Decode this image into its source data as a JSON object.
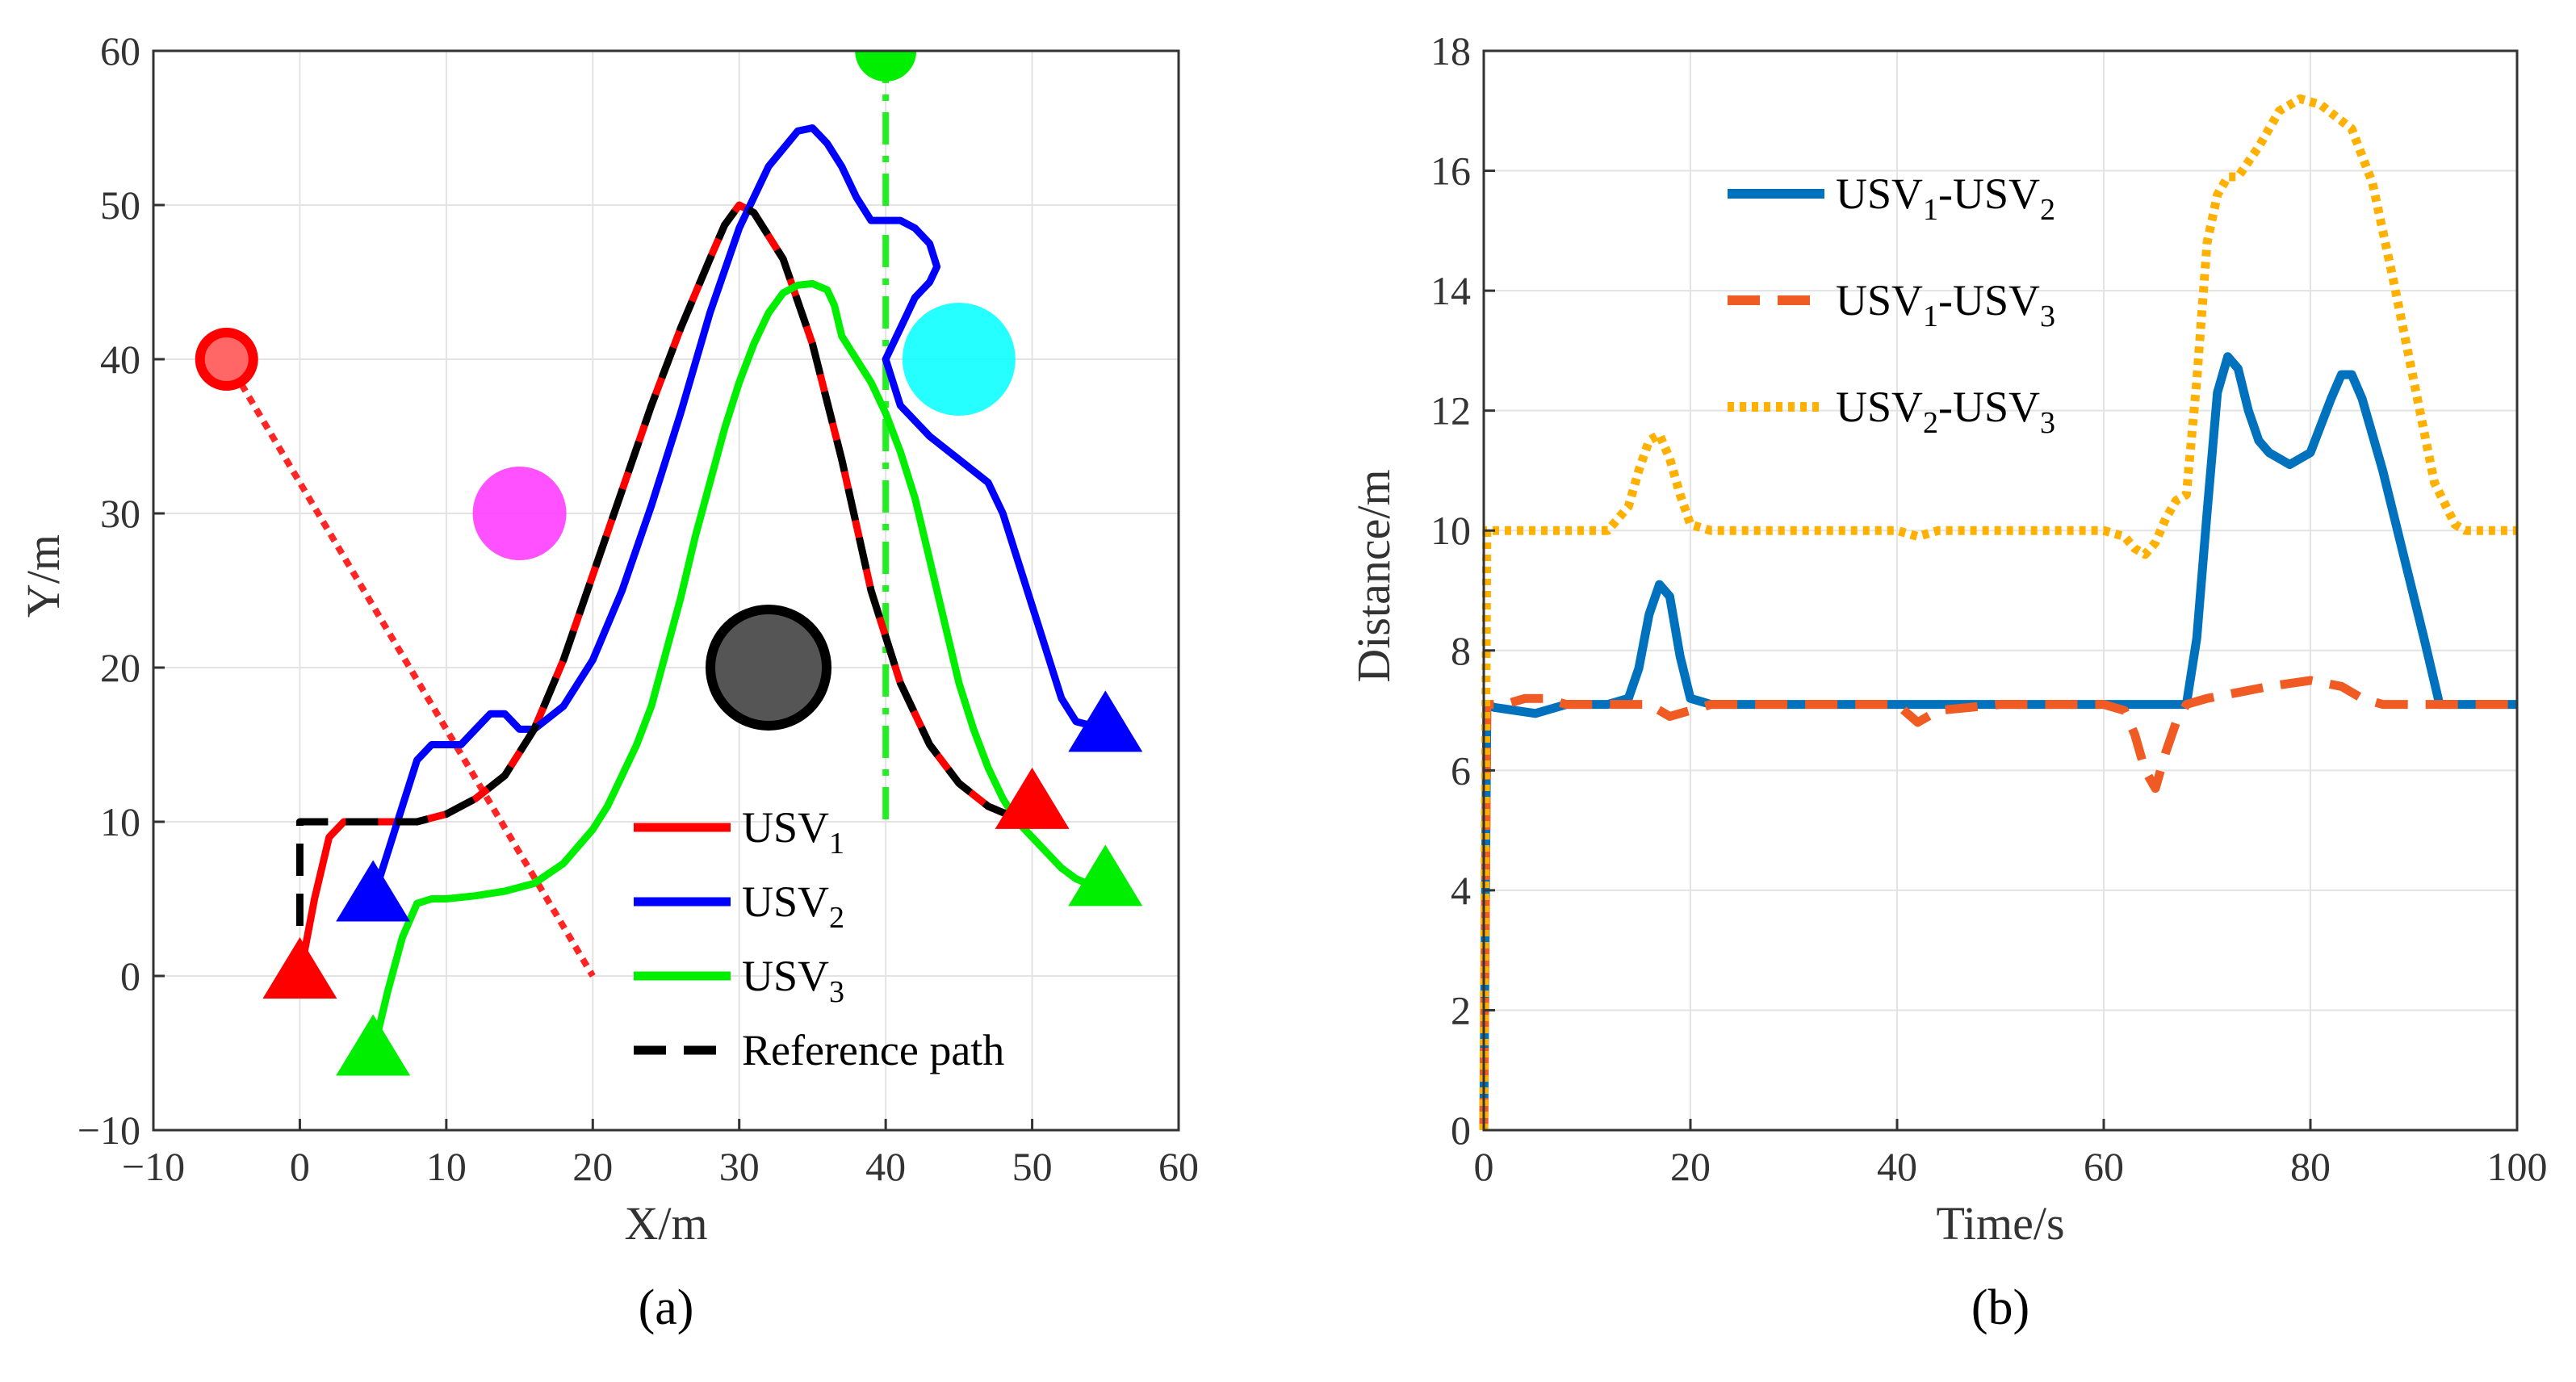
{
  "chart_data": [
    {
      "type": "line",
      "panel_label": "(a)",
      "xlabel": "X/m",
      "ylabel": "Y/m",
      "xlim": [
        -10,
        60
      ],
      "ylim": [
        -10,
        60
      ],
      "xticks": [
        "−10",
        "0",
        "10",
        "20",
        "30",
        "40",
        "50",
        "60"
      ],
      "yticks": [
        "−10",
        "0",
        "10",
        "20",
        "30",
        "40",
        "50",
        "60"
      ],
      "grid": true,
      "legend_position": "bottom-right",
      "series": [
        {
          "name": "USV1",
          "legend_main": "USV",
          "legend_sub": "1",
          "color": "#ff0000",
          "style": "solid",
          "x": [
            0,
            1,
            2,
            3,
            5,
            8,
            10,
            12,
            14,
            16,
            18,
            20,
            22,
            24,
            26,
            28,
            29,
            30,
            31,
            33,
            35,
            37,
            39,
            41,
            43,
            45,
            47,
            48.5,
            50
          ],
          "y": [
            0,
            5,
            9,
            10,
            10,
            10,
            10.5,
            11.5,
            13,
            16,
            20.5,
            26,
            31.5,
            37,
            42,
            46.5,
            48.7,
            50,
            49.5,
            46.5,
            41,
            33.5,
            25,
            19,
            15,
            12.5,
            11,
            10.4,
            10
          ]
        },
        {
          "name": "USV2",
          "legend_main": "USV",
          "legend_sub": "2",
          "color": "#0000ff",
          "style": "solid",
          "x": [
            5,
            6,
            7,
            8,
            9,
            10,
            11,
            12,
            13,
            14,
            15,
            16,
            18,
            20,
            22,
            24,
            26,
            28,
            30,
            32,
            34,
            35,
            36,
            37,
            38,
            39,
            40,
            41,
            42,
            43,
            43.5,
            43,
            42,
            41,
            40,
            41,
            43,
            45,
            47,
            48,
            50,
            52,
            53,
            55
          ],
          "y": [
            5,
            8,
            11,
            14,
            15,
            15,
            15,
            16,
            17,
            17,
            16,
            16,
            17.5,
            20.5,
            25,
            30.5,
            36.5,
            43,
            48.5,
            52.5,
            54.8,
            55,
            54,
            52.5,
            50.5,
            49,
            49,
            49,
            48.5,
            47.5,
            46,
            45,
            44,
            42,
            40,
            37,
            35,
            33.5,
            32,
            30,
            24,
            18,
            16.5,
            16
          ]
        },
        {
          "name": "USV3",
          "legend_main": "USV",
          "legend_sub": "3",
          "color": "#00ee00",
          "style": "solid",
          "x": [
            5,
            6,
            7,
            8,
            9,
            10,
            12,
            14,
            16,
            18,
            20,
            21,
            22,
            23,
            24,
            25,
            26,
            27,
            28,
            29,
            30,
            31,
            32,
            33,
            34,
            35,
            36,
            36.5,
            37,
            38,
            39,
            40,
            41,
            42,
            43,
            44,
            45,
            46,
            47,
            48,
            49,
            50,
            51,
            52,
            53,
            54,
            55
          ],
          "y": [
            -5,
            -1,
            2.5,
            4.7,
            5,
            5,
            5.2,
            5.5,
            6,
            7.3,
            9.5,
            11,
            13,
            15,
            17.5,
            21,
            24.5,
            28.5,
            32,
            35.5,
            38.5,
            41,
            43,
            44.3,
            44.8,
            44.9,
            44.5,
            43.5,
            41.5,
            40,
            38.5,
            36.5,
            34,
            31,
            27,
            23,
            19,
            16,
            13.5,
            11.5,
            10,
            9,
            8,
            7,
            6.3,
            5.9,
            5.7
          ]
        },
        {
          "name": "Reference path",
          "legend_main": "Reference path",
          "legend_sub": "",
          "color": "#000000",
          "style": "dashed",
          "x": [
            0,
            0,
            0,
            3,
            5,
            8,
            10,
            12,
            14,
            16,
            18,
            20,
            22,
            24,
            26,
            28,
            29,
            30,
            31,
            33,
            35,
            37,
            39,
            41,
            43,
            45,
            47,
            48.5,
            50
          ],
          "y": [
            0,
            7,
            10,
            10,
            10,
            10,
            10.5,
            11.5,
            13,
            16,
            20.5,
            26,
            31.5,
            37,
            42,
            46.5,
            48.7,
            50,
            49.5,
            46.5,
            41,
            33.5,
            25,
            19,
            15,
            12.5,
            11,
            10.4,
            10
          ]
        }
      ],
      "extras": {
        "obstacles": [
          {
            "x": 15,
            "y": 30,
            "color": "#ff33ff",
            "style": "static"
          },
          {
            "x": 45,
            "y": 40,
            "color": "#00ffff",
            "style": "static"
          },
          {
            "x": 32,
            "y": 20,
            "color": "#555555",
            "style": "dark"
          }
        ],
        "moving_obstacles": [
          {
            "from": [
              -5,
              40
            ],
            "to": [
              20,
              0
            ],
            "color": "#ff0000"
          },
          {
            "from": [
              40,
              60
            ],
            "to": [
              40,
              10
            ],
            "color": "#00ee00"
          }
        ],
        "markers": [
          {
            "x": 0,
            "y": 0,
            "color": "#ff0000"
          },
          {
            "x": 5,
            "y": 5,
            "color": "#0000ff"
          },
          {
            "x": 5,
            "y": -5,
            "color": "#00ee00"
          },
          {
            "x": 50,
            "y": 11,
            "color": "#ff0000"
          },
          {
            "x": 55,
            "y": 16,
            "color": "#0000ff"
          },
          {
            "x": 55,
            "y": 6,
            "color": "#00ee00"
          }
        ]
      }
    },
    {
      "type": "line",
      "panel_label": "(b)",
      "xlabel": "Time/s",
      "ylabel": "Distance/m",
      "xlim": [
        0,
        100
      ],
      "ylim": [
        0,
        18
      ],
      "xticks": [
        "0",
        "20",
        "40",
        "60",
        "80",
        "100"
      ],
      "yticks": [
        "0",
        "2",
        "4",
        "6",
        "8",
        "10",
        "12",
        "14",
        "16",
        "18"
      ],
      "grid": true,
      "legend_position": "top-left",
      "series": [
        {
          "name": "USV1-USV2",
          "legend_main": "USV",
          "legend_sub": "1",
          "legend_main2": "-USV",
          "legend_sub2": "2",
          "color": "#0072bd",
          "style": "solid",
          "x": [
            0,
            0.3,
            1,
            3,
            5,
            8,
            10,
            12,
            14,
            15,
            16,
            17,
            18,
            19,
            20,
            22,
            30,
            40,
            50,
            60,
            66,
            68,
            69,
            70,
            71,
            72,
            73,
            74,
            75,
            76,
            78,
            80,
            82,
            83,
            84,
            85,
            87,
            89,
            91,
            92.5,
            95,
            100
          ],
          "y": [
            0,
            7.1,
            7.05,
            7.0,
            6.95,
            7.1,
            7.1,
            7.1,
            7.2,
            7.7,
            8.6,
            9.1,
            8.9,
            7.9,
            7.2,
            7.1,
            7.1,
            7.1,
            7.1,
            7.1,
            7.1,
            7.1,
            8.2,
            10.3,
            12.3,
            12.9,
            12.7,
            12.0,
            11.5,
            11.3,
            11.1,
            11.3,
            12.2,
            12.6,
            12.6,
            12.2,
            11.0,
            9.6,
            8.2,
            7.1,
            7.1,
            7.1
          ]
        },
        {
          "name": "USV1-USV3",
          "legend_main": "USV",
          "legend_sub": "1",
          "legend_main2": "-USV",
          "legend_sub2": "3",
          "color": "#f05a23",
          "style": "dashed",
          "x": [
            0,
            0.3,
            2,
            4,
            6,
            8,
            10,
            14,
            16,
            18,
            20,
            22,
            30,
            40,
            42,
            44,
            50,
            60,
            62,
            63,
            64,
            65,
            66,
            67,
            68,
            70,
            73,
            76,
            80,
            83,
            85,
            87,
            90,
            95,
            100
          ],
          "y": [
            0,
            7.1,
            7.1,
            7.2,
            7.2,
            7.1,
            7.1,
            7.1,
            7.1,
            6.9,
            7.0,
            7.1,
            7.1,
            7.1,
            6.8,
            7.0,
            7.1,
            7.1,
            7.0,
            6.6,
            6.0,
            5.7,
            6.3,
            6.8,
            7.1,
            7.2,
            7.3,
            7.4,
            7.5,
            7.4,
            7.2,
            7.1,
            7.1,
            7.1,
            7.1
          ]
        },
        {
          "name": "USV2-USV3",
          "legend_main": "USV",
          "legend_sub": "2",
          "legend_main2": "-USV",
          "legend_sub2": "3",
          "color": "#ffb000",
          "style": "dotted",
          "x": [
            0,
            0.3,
            2,
            5,
            10,
            12,
            14,
            15,
            16,
            17,
            18,
            19,
            20,
            22,
            30,
            40,
            42,
            44,
            50,
            60,
            62,
            63,
            64,
            65,
            66,
            67,
            68,
            69,
            70,
            71,
            72,
            73,
            75,
            77,
            79,
            81,
            84,
            86,
            88,
            90,
            92,
            94,
            95,
            100
          ],
          "y": [
            0,
            10.0,
            10.0,
            10.0,
            10.0,
            10.0,
            10.4,
            11.0,
            11.5,
            11.6,
            11.2,
            10.6,
            10.1,
            10.0,
            10.0,
            10.0,
            9.9,
            10.0,
            10.0,
            10.0,
            9.9,
            9.7,
            9.6,
            9.8,
            10.2,
            10.5,
            10.6,
            12.5,
            14.8,
            15.6,
            15.9,
            15.9,
            16.4,
            17.0,
            17.2,
            17.1,
            16.7,
            15.8,
            14.2,
            12.5,
            10.8,
            10.1,
            10.0,
            10.0
          ]
        }
      ]
    }
  ]
}
